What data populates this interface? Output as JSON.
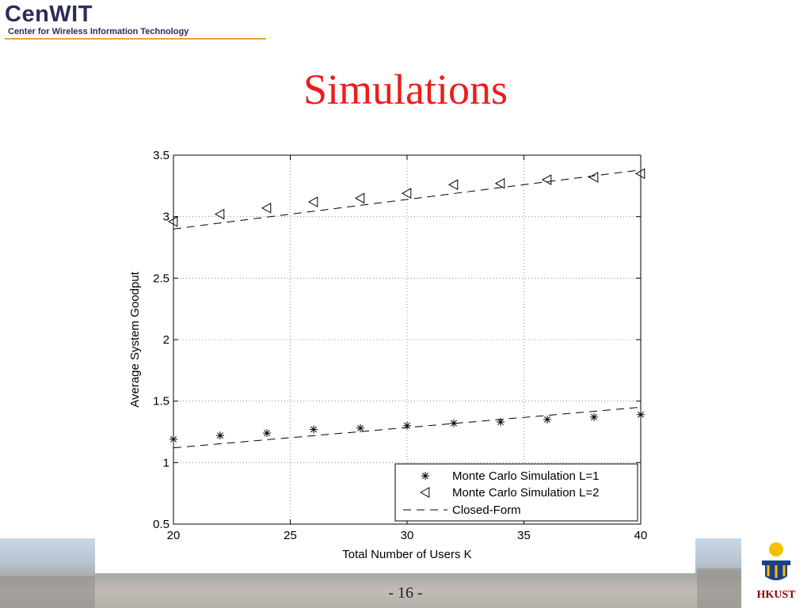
{
  "logo": {
    "main_cen": "Cen",
    "main_wit": "WIT",
    "subtitle": "Center for Wireless Information Technology"
  },
  "slide": {
    "title": "Simulations",
    "page_number": "- 16 -",
    "institution": "HKUST"
  },
  "chart_data": {
    "type": "line",
    "title": "",
    "xlabel": "Total Number of Users K",
    "ylabel": "Average System Goodput",
    "xlim": [
      20,
      40
    ],
    "ylim": [
      0.5,
      3.5
    ],
    "xticks": [
      "20",
      "25",
      "30",
      "35",
      "40"
    ],
    "yticks": [
      "0.5",
      "1",
      "1.5",
      "2",
      "2.5",
      "3",
      "3.5"
    ],
    "grid": true,
    "legend_position": "bottom-right",
    "series": [
      {
        "name": "Monte Carlo Simulation L=1",
        "marker": "asterisk",
        "x": [
          20,
          22,
          24,
          26,
          28,
          30,
          32,
          34,
          36,
          38,
          40
        ],
        "y": [
          1.19,
          1.22,
          1.24,
          1.27,
          1.28,
          1.3,
          1.32,
          1.33,
          1.35,
          1.37,
          1.39
        ]
      },
      {
        "name": "Monte Carlo Simulation L=2",
        "marker": "triangle-left",
        "x": [
          20,
          22,
          24,
          26,
          28,
          30,
          32,
          34,
          36,
          38,
          40
        ],
        "y": [
          2.96,
          3.02,
          3.07,
          3.12,
          3.15,
          3.19,
          3.26,
          3.27,
          3.3,
          3.32,
          3.35
        ]
      },
      {
        "name": "Closed-Form",
        "style": "dashed",
        "x": [
          20,
          40
        ],
        "y_l1": [
          1.12,
          1.45
        ],
        "y_l2": [
          2.9,
          3.38
        ]
      }
    ]
  }
}
